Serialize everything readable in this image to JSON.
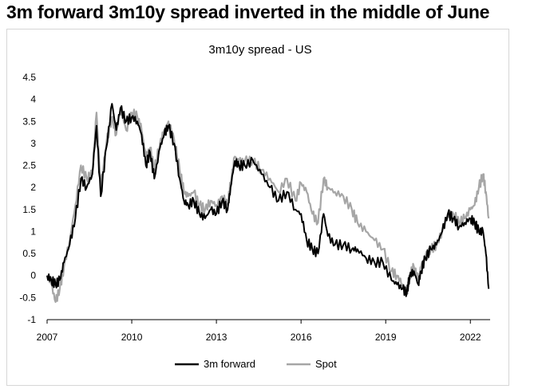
{
  "headline": "3m forward 3m10y spread inverted in the middle of June",
  "chart_data": {
    "type": "line",
    "title": "3m10y spread - US",
    "xlabel": "",
    "ylabel": "",
    "xlim": [
      2007,
      2022.7
    ],
    "ylim": [
      -1,
      4.5
    ],
    "grid": false,
    "legend_position": "bottom",
    "y_ticks": [
      "4.5",
      "4",
      "3.5",
      "3",
      "2.5",
      "2",
      "1.5",
      "1",
      "0.5",
      "0",
      "-0.5",
      "-1"
    ],
    "x_ticks": [
      "2007",
      "2010",
      "2013",
      "2016",
      "2019",
      "2022"
    ],
    "colors": {
      "3m forward": "#000000",
      "Spot": "#a6a6a6"
    },
    "series": [
      {
        "name": "Spot",
        "x": [
          2007.0,
          2007.15,
          2007.3,
          2007.45,
          2007.6,
          2007.8,
          2008.0,
          2008.2,
          2008.4,
          2008.6,
          2008.75,
          2008.9,
          2009.1,
          2009.3,
          2009.45,
          2009.6,
          2009.8,
          2010.0,
          2010.2,
          2010.35,
          2010.5,
          2010.65,
          2010.8,
          2011.0,
          2011.15,
          2011.3,
          2011.5,
          2011.7,
          2011.85,
          2012.0,
          2012.2,
          2012.4,
          2012.6,
          2012.8,
          2013.0,
          2013.2,
          2013.4,
          2013.5,
          2013.65,
          2013.8,
          2014.0,
          2014.3,
          2014.6,
          2014.9,
          2015.2,
          2015.5,
          2015.8,
          2016.0,
          2016.2,
          2016.4,
          2016.6,
          2016.8,
          2016.95,
          2017.2,
          2017.5,
          2017.8,
          2018.0,
          2018.3,
          2018.6,
          2018.9,
          2019.2,
          2019.4,
          2019.6,
          2019.75,
          2019.85,
          2020.0,
          2020.15,
          2020.25,
          2020.4,
          2020.6,
          2020.8,
          2021.0,
          2021.2,
          2021.4,
          2021.6,
          2021.8,
          2022.0,
          2022.15,
          2022.3,
          2022.45,
          2022.55,
          2022.65
        ],
        "values": [
          0.0,
          -0.2,
          -0.6,
          -0.3,
          0.2,
          0.8,
          1.6,
          2.5,
          2.2,
          2.3,
          3.7,
          2.0,
          3.0,
          3.6,
          3.2,
          3.8,
          3.3,
          3.7,
          3.6,
          3.3,
          2.7,
          2.9,
          2.4,
          3.0,
          3.3,
          3.5,
          3.1,
          2.4,
          1.9,
          1.8,
          1.9,
          1.6,
          1.5,
          1.7,
          1.6,
          1.8,
          1.6,
          2.1,
          2.7,
          2.6,
          2.6,
          2.6,
          2.4,
          2.2,
          1.9,
          2.2,
          1.7,
          2.1,
          1.9,
          1.4,
          1.2,
          2.2,
          2.0,
          1.9,
          1.8,
          1.5,
          1.2,
          1.0,
          0.8,
          0.6,
          0.1,
          0.0,
          -0.2,
          -0.4,
          0.0,
          0.2,
          -0.1,
          0.2,
          0.4,
          0.6,
          0.7,
          1.0,
          1.4,
          1.4,
          1.2,
          1.3,
          1.5,
          1.6,
          2.0,
          2.3,
          1.9,
          1.3
        ]
      },
      {
        "name": "3m forward",
        "x": [
          2007.0,
          2007.15,
          2007.3,
          2007.45,
          2007.6,
          2007.8,
          2008.0,
          2008.2,
          2008.4,
          2008.6,
          2008.75,
          2008.9,
          2009.1,
          2009.3,
          2009.45,
          2009.6,
          2009.8,
          2010.0,
          2010.2,
          2010.35,
          2010.5,
          2010.65,
          2010.8,
          2011.0,
          2011.15,
          2011.3,
          2011.5,
          2011.7,
          2011.85,
          2012.0,
          2012.2,
          2012.4,
          2012.6,
          2012.8,
          2013.0,
          2013.2,
          2013.4,
          2013.5,
          2013.65,
          2013.8,
          2014.0,
          2014.3,
          2014.6,
          2014.9,
          2015.2,
          2015.5,
          2015.8,
          2016.0,
          2016.2,
          2016.4,
          2016.6,
          2016.8,
          2016.95,
          2017.2,
          2017.5,
          2017.8,
          2018.0,
          2018.3,
          2018.6,
          2018.9,
          2019.2,
          2019.4,
          2019.6,
          2019.75,
          2019.85,
          2020.0,
          2020.15,
          2020.25,
          2020.4,
          2020.6,
          2020.8,
          2021.0,
          2021.2,
          2021.4,
          2021.6,
          2021.8,
          2022.0,
          2022.15,
          2022.3,
          2022.45,
          2022.55,
          2022.65
        ],
        "values": [
          0.0,
          -0.1,
          -0.2,
          -0.1,
          0.3,
          0.7,
          1.3,
          2.2,
          2.0,
          2.3,
          3.4,
          1.8,
          2.9,
          3.9,
          3.3,
          3.8,
          3.5,
          3.6,
          3.5,
          3.2,
          2.5,
          2.8,
          2.2,
          2.9,
          3.2,
          3.4,
          3.0,
          2.2,
          1.7,
          1.6,
          1.7,
          1.4,
          1.3,
          1.5,
          1.4,
          1.7,
          1.5,
          2.0,
          2.6,
          2.5,
          2.5,
          2.6,
          2.3,
          2.0,
          1.7,
          1.9,
          1.5,
          1.4,
          0.8,
          0.6,
          0.5,
          1.4,
          0.9,
          0.7,
          0.7,
          0.6,
          0.6,
          0.4,
          0.3,
          0.3,
          -0.1,
          -0.2,
          -0.3,
          -0.4,
          0.0,
          0.1,
          -0.2,
          0.1,
          0.4,
          0.6,
          0.7,
          1.0,
          1.4,
          1.3,
          1.1,
          1.2,
          1.3,
          1.2,
          1.0,
          1.0,
          0.5,
          -0.3
        ]
      }
    ]
  }
}
